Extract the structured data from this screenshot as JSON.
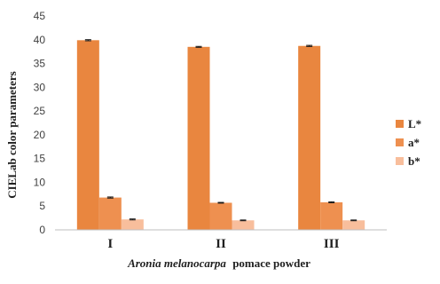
{
  "chart_data": {
    "type": "bar",
    "categories": [
      "I",
      "II",
      "III"
    ],
    "series": [
      {
        "name": "L*",
        "values": [
          39.9,
          38.5,
          38.7
        ],
        "errors": [
          0.12,
          0.1,
          0.12
        ],
        "color": "#E9863F"
      },
      {
        "name": "a*",
        "values": [
          6.8,
          5.7,
          5.8
        ],
        "errors": [
          0.12,
          0.08,
          0.1
        ],
        "color": "#EE9050"
      },
      {
        "name": "b*",
        "values": [
          2.2,
          2.0,
          2.0
        ],
        "errors": [
          0.1,
          0.08,
          0.08
        ],
        "color": "#F8BE9C"
      }
    ],
    "yticks": [
      "0",
      "5",
      "10",
      "15",
      "20",
      "25",
      "30",
      "35",
      "40",
      "45"
    ],
    "ylim": [
      0,
      45
    ],
    "ylabel": "CIELab color parameters",
    "xlabel_italic": "Aronia melanocarpa",
    "xlabel_rest": "pomace powder",
    "legend_position": "right",
    "grid": false
  }
}
